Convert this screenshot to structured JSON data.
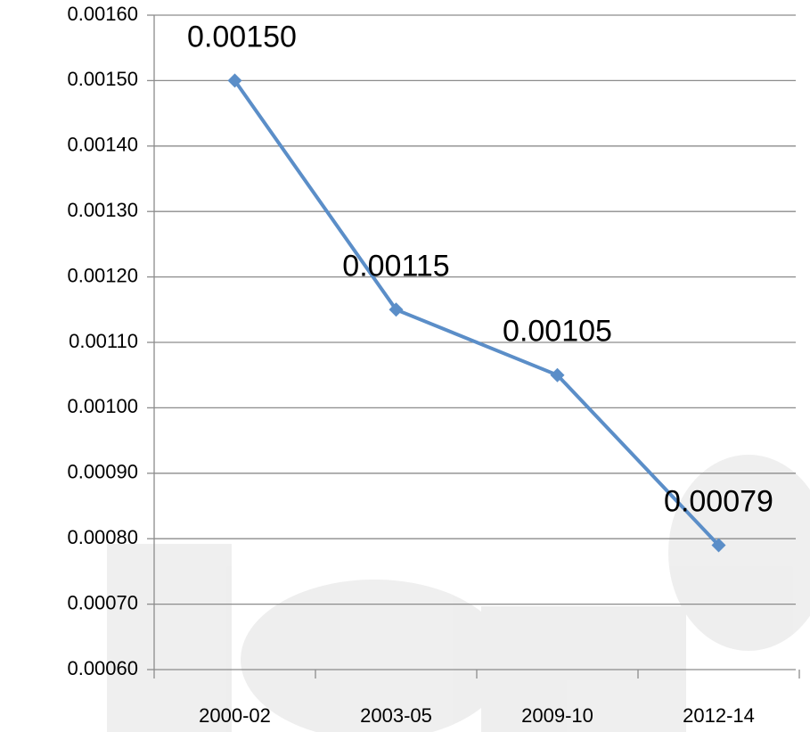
{
  "chart_data": {
    "type": "line",
    "categories": [
      "2000-02",
      "2003-05",
      "2009-10",
      "2012-14"
    ],
    "series": [
      {
        "color": "#5b8ec8",
        "values": [
          0.0015,
          0.00115,
          0.00105,
          0.00079
        ],
        "value_labels": [
          "0.00150",
          "0.00115",
          "0.00105",
          "0.00079"
        ]
      }
    ],
    "ylim": [
      0.0006,
      0.0016
    ],
    "yticks": [
      {
        "value": 0.0006,
        "label": "0.00060"
      },
      {
        "value": 0.0007,
        "label": "0.00070"
      },
      {
        "value": 0.0008,
        "label": "0.00080"
      },
      {
        "value": 0.0009,
        "label": "0.00090"
      },
      {
        "value": 0.001,
        "label": "0.00100"
      },
      {
        "value": 0.0011,
        "label": "0.00110"
      },
      {
        "value": 0.0012,
        "label": "0.00120"
      },
      {
        "value": 0.0013,
        "label": "0.00130"
      },
      {
        "value": 0.0014,
        "label": "0.00140"
      },
      {
        "value": 0.0015,
        "label": "0.00150"
      },
      {
        "value": 0.0016,
        "label": "0.00160"
      }
    ],
    "grid": true
  }
}
